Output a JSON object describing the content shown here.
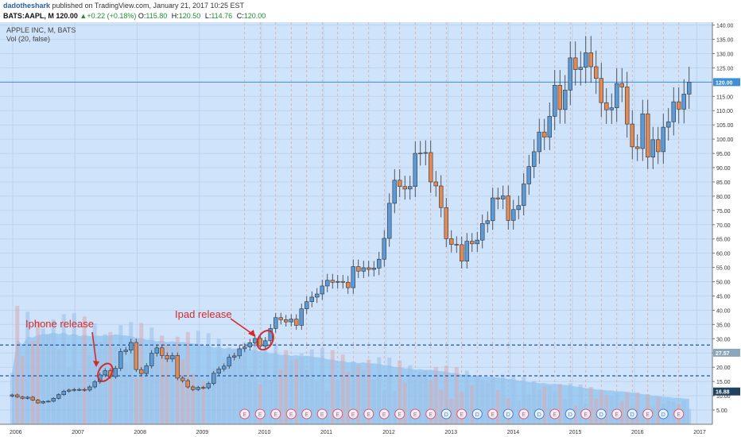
{
  "header": {
    "author": "dadotheshark",
    "published": "published on TradingView.com, January 21, 2017 10:25 EST",
    "symbol": "BATS:AAPL, M",
    "last": "120.00",
    "change": "+0.22 (+0.18%)",
    "open_label": "O:",
    "open": "115.80",
    "high_label": "H:",
    "high": "120.50",
    "low_label": "L:",
    "low": "114.76",
    "close_label": "C:",
    "close": "120.00"
  },
  "colors": {
    "up": "#5d9ad6",
    "down": "#e08a57",
    "background": "#cfe3fb",
    "volume_area": "#8fc4ef",
    "level_line": "#2456a2",
    "annotation": "#d42a2a",
    "earnings": "#e05a6c",
    "dividend": "#4a7fd0"
  },
  "chart_data": {
    "type": "candlestick",
    "title": "APPLE INC, M, BATS",
    "indicator": "Vol (20, false)",
    "price_axis": [
      "140.00",
      "135.00",
      "130.00",
      "125.00",
      "115.00",
      "110.00",
      "105.00",
      "100.00",
      "95.00",
      "90.00",
      "85.00",
      "80.00",
      "75.00",
      "70.00",
      "65.00",
      "60.00",
      "55.00",
      "50.00",
      "45.00",
      "40.00",
      "35.00",
      "30.00",
      "25.00",
      "20.00",
      "15.00",
      "10.00",
      "5.00"
    ],
    "time_axis": [
      "2006",
      "2007",
      "2008",
      "2009",
      "2010",
      "2011",
      "2012",
      "2013",
      "2014",
      "2015",
      "2016",
      "2017"
    ],
    "ylim": [
      0,
      141
    ],
    "last_price": "120.00",
    "volume_labels": [
      "27.57",
      "16.88"
    ],
    "levels": [
      27.8,
      17.0
    ],
    "annotations": [
      "Iphone release",
      "Ipad release"
    ],
    "earnings_marker": "E",
    "dividend_marker": "D",
    "closes": [
      10.3,
      9.6,
      9.1,
      9.5,
      8.5,
      7.5,
      8.0,
      8.1,
      9.1,
      10.4,
      11.6,
      12.0,
      12.2,
      12.2,
      12.0,
      13.1,
      14.9,
      17.3,
      18.8,
      16.7,
      19.6,
      25.5,
      26.0,
      28.7,
      19.2,
      17.8,
      20.5,
      24.9,
      26.8,
      24.1,
      22.9,
      24.1,
      16.2,
      15.3,
      13.1,
      12.2,
      12.9,
      12.8,
      14.3,
      17.9,
      19.4,
      20.4,
      23.5,
      24.0,
      26.5,
      27.1,
      28.6,
      30.1,
      27.4,
      29.3,
      33.6,
      37.4,
      36.7,
      35.9,
      36.9,
      34.7,
      40.5,
      43.0,
      44.6,
      45.7,
      48.5,
      50.5,
      49.8,
      50.1,
      49.8,
      47.9,
      55.3,
      53.7,
      54.9,
      54.3,
      54.8,
      57.9,
      65.2,
      77.5,
      85.6,
      83.4,
      82.5,
      83.4,
      95.0,
      95.1,
      95.3,
      85.0,
      83.6,
      76.0,
      65.1,
      63.1,
      63.0,
      57.2,
      64.2,
      63.3,
      64.6,
      70.4,
      71.4,
      79.4,
      79.0,
      80.1,
      71.5,
      75.3,
      76.7,
      84.3,
      90.4,
      95.6,
      102.5,
      100.7,
      108.0,
      118.9,
      110.4,
      117.2,
      128.5,
      124.4,
      125.2,
      130.3,
      125.4,
      121.3,
      112.8,
      110.3,
      111.0,
      119.5,
      118.3,
      105.3,
      97.3,
      96.7,
      108.9,
      93.7,
      99.8,
      95.6,
      104.2,
      106.1,
      113.1,
      110.5,
      115.8,
      120.0
    ]
  }
}
